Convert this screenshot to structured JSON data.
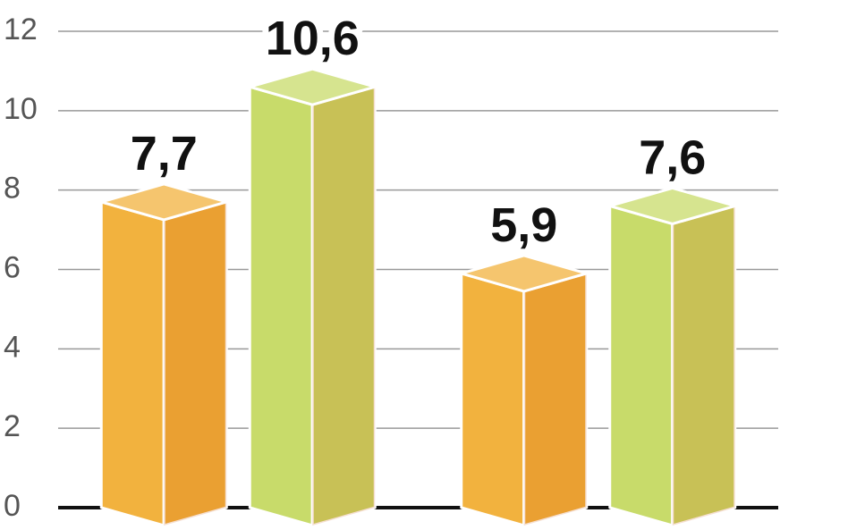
{
  "chart_data": {
    "type": "bar",
    "categories": [
      null,
      null
    ],
    "series": [
      {
        "color": "#f2b23e",
        "values": [
          7.7,
          5.9
        ],
        "value_labels": [
          "7,7",
          "5,9"
        ]
      },
      {
        "color": "#c8db6a",
        "values": [
          10.6,
          7.6
        ],
        "value_labels": [
          "10,6",
          "7,6"
        ]
      }
    ],
    "ylim": [
      0,
      12
    ],
    "yticks": [
      0,
      2,
      4,
      6,
      8,
      10,
      12
    ],
    "grid": true
  }
}
